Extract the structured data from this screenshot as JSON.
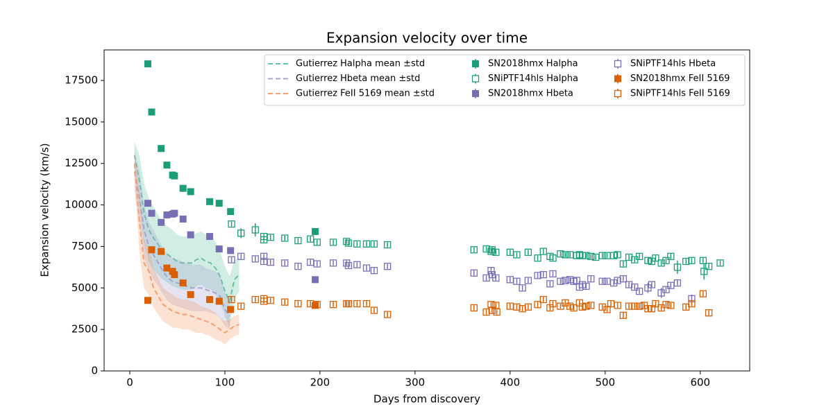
{
  "chart_data": {
    "type": "scatter",
    "title": "Expansion velocity over time",
    "x_label": "Days from discovery",
    "y_label": "Expansion velocity (km/s)",
    "xlim": [
      -27,
      652
    ],
    "ylim": [
      0,
      19340
    ],
    "xticks": [
      0,
      100,
      200,
      300,
      400,
      500,
      600
    ],
    "yticks": [
      0,
      2500,
      5000,
      7500,
      10000,
      12500,
      15000,
      17500
    ],
    "grid": false,
    "legend_loc": "upper right",
    "series": [
      {
        "name": "Gutierrez Halpha mean ±std",
        "style": "band-line",
        "color": "#66c2a5",
        "x": [
          5,
          10,
          15,
          20,
          25,
          30,
          35,
          40,
          45,
          50,
          55,
          60,
          65,
          70,
          75,
          80,
          85,
          90,
          95,
          100,
          105,
          110,
          115
        ],
        "values": [
          13000,
          11500,
          9500,
          8500,
          8000,
          7600,
          7200,
          7000,
          6800,
          6600,
          6500,
          6500,
          6500,
          6700,
          6800,
          6600,
          6500,
          6200,
          5700,
          4800,
          4200,
          5500,
          5800
        ],
        "std": [
          800,
          1500,
          1800,
          1900,
          1900,
          1800,
          1700,
          1700,
          1700,
          1600,
          1600,
          1600,
          1600,
          1600,
          1600,
          1600,
          1600,
          1600,
          1500,
          1500,
          1500,
          1200,
          1000
        ]
      },
      {
        "name": "Gutierrez Hbeta mean ±std",
        "style": "band-line",
        "color": "#a6a4d4",
        "x": [
          5,
          10,
          15,
          20,
          25,
          30,
          35,
          40,
          45,
          50,
          55,
          60,
          65,
          70,
          75,
          80,
          85,
          90,
          95,
          100,
          105
        ],
        "values": [
          12000,
          10500,
          8500,
          7500,
          7000,
          6500,
          6000,
          5600,
          5400,
          5300,
          5200,
          5100,
          5000,
          5000,
          5000,
          4900,
          4800,
          4700,
          4500,
          3700,
          3300
        ],
        "std": [
          1200,
          1600,
          1600,
          1500,
          1500,
          1400,
          1400,
          1400,
          1400,
          1400,
          1400,
          1400,
          1400,
          1400,
          1400,
          1300,
          1300,
          1300,
          1300,
          1000,
          800
        ]
      },
      {
        "name": "Gutierrez FeII 5169 mean ±std",
        "style": "band-line",
        "color": "#f4a06e",
        "x": [
          5,
          10,
          15,
          20,
          25,
          30,
          35,
          40,
          45,
          50,
          55,
          60,
          65,
          70,
          75,
          80,
          85,
          90,
          95,
          100,
          105,
          110,
          115
        ],
        "values": [
          12500,
          9000,
          6500,
          6000,
          5000,
          4500,
          4000,
          3800,
          3600,
          3500,
          3400,
          3400,
          3300,
          3200,
          3100,
          3000,
          2900,
          2700,
          2500,
          2300,
          2500,
          2700,
          2800
        ],
        "std": [
          800,
          1800,
          1500,
          1400,
          1200,
          1100,
          1000,
          1000,
          1000,
          900,
          900,
          900,
          900,
          900,
          800,
          800,
          800,
          800,
          700,
          700,
          600,
          600,
          600
        ]
      },
      {
        "name": "SN2018hmx Halpha",
        "style": "filled-square",
        "color": "#1b9e77",
        "x": [
          19,
          23,
          33,
          39,
          45,
          47,
          56,
          64,
          84,
          94,
          106,
          195
        ],
        "values": [
          18500,
          15600,
          13400,
          12400,
          11800,
          11750,
          11000,
          10800,
          10200,
          10100,
          9600,
          8400
        ]
      },
      {
        "name": "SNiPTF14hls Halpha",
        "style": "open-square",
        "color": "#1b9e77",
        "x": [
          107,
          117,
          132,
          141,
          141,
          148,
          163,
          177,
          190,
          197,
          214,
          228,
          230,
          239,
          249,
          257,
          271,
          362,
          375,
          380,
          381,
          385,
          400,
          407,
          419,
          429,
          435,
          442,
          445,
          453,
          458,
          463,
          470,
          473,
          476,
          480,
          485,
          490,
          497,
          502,
          509,
          513,
          519,
          525,
          531,
          536,
          545,
          549,
          553,
          559,
          564,
          569,
          576,
          585,
          591,
          603,
          604,
          609,
          621
        ],
        "values": [
          8850,
          8300,
          8500,
          8100,
          7900,
          8050,
          8000,
          7850,
          7950,
          7750,
          7750,
          7800,
          7700,
          7650,
          7650,
          7650,
          7600,
          7300,
          7350,
          7200,
          7300,
          7150,
          7150,
          7000,
          7150,
          6800,
          7200,
          6900,
          6800,
          7050,
          7000,
          7000,
          6950,
          7000,
          6950,
          6950,
          6900,
          6850,
          6950,
          6950,
          6950,
          7000,
          6450,
          6850,
          6700,
          6900,
          6650,
          6600,
          6800,
          6500,
          6650,
          6900,
          6250,
          6600,
          6650,
          6650,
          6000,
          6300,
          6500
        ],
        "errors": [
          150,
          300,
          400,
          150,
          150,
          150,
          150,
          150,
          150,
          150,
          150,
          150,
          150,
          150,
          150,
          150,
          150,
          150,
          150,
          150,
          150,
          150,
          150,
          150,
          150,
          150,
          150,
          150,
          150,
          150,
          150,
          150,
          150,
          150,
          150,
          150,
          150,
          150,
          150,
          150,
          150,
          150,
          150,
          150,
          150,
          150,
          150,
          150,
          150,
          150,
          150,
          150,
          400,
          150,
          150,
          150,
          500,
          150,
          150
        ]
      },
      {
        "name": "SN2018hmx Hbeta",
        "style": "filled-square",
        "color": "#7570b3",
        "x": [
          19,
          23,
          33,
          39,
          45,
          47,
          56,
          64,
          84,
          94,
          106,
          195
        ],
        "values": [
          10100,
          9500,
          8950,
          9400,
          9450,
          9500,
          9150,
          8200,
          8100,
          7350,
          7250,
          5500
        ]
      },
      {
        "name": "SNiPTF14hls Hbeta",
        "style": "open-square",
        "color": "#7570b3",
        "x": [
          107,
          117,
          132,
          141,
          141,
          148,
          163,
          177,
          190,
          197,
          214,
          228,
          230,
          239,
          249,
          257,
          271,
          362,
          375,
          380,
          381,
          385,
          400,
          407,
          413,
          419,
          429,
          435,
          442,
          445,
          453,
          458,
          463,
          467,
          470,
          473,
          476,
          480,
          485,
          497,
          502,
          509,
          513,
          519,
          525,
          531,
          536,
          545,
          549,
          559,
          564,
          569,
          576,
          591
        ],
        "values": [
          6700,
          6900,
          6750,
          6900,
          6600,
          6550,
          6500,
          6300,
          6550,
          6450,
          6500,
          6500,
          6350,
          6400,
          6200,
          6050,
          6300,
          5900,
          5600,
          6050,
          5800,
          5600,
          5500,
          5400,
          5000,
          5450,
          5750,
          5800,
          5250,
          5850,
          5400,
          5450,
          5500,
          5400,
          5450,
          5050,
          5200,
          5100,
          5550,
          5400,
          5400,
          5300,
          5450,
          5550,
          5200,
          5050,
          4800,
          5000,
          5200,
          4700,
          4900,
          5150,
          5300,
          4350
        ],
        "errors": [
          150,
          150,
          150,
          150,
          150,
          150,
          150,
          150,
          150,
          150,
          150,
          150,
          150,
          150,
          150,
          150,
          150,
          150,
          150,
          200,
          150,
          150,
          150,
          150,
          150,
          150,
          150,
          150,
          150,
          150,
          150,
          150,
          150,
          150,
          150,
          150,
          150,
          150,
          150,
          150,
          150,
          150,
          150,
          150,
          150,
          150,
          150,
          300,
          150,
          300,
          150,
          150,
          150,
          250
        ]
      },
      {
        "name": "SN2018hmx FeII 5169",
        "style": "filled-square",
        "color": "#d95f02",
        "x": [
          19,
          23,
          33,
          39,
          45,
          47,
          56,
          64,
          84,
          94,
          106,
          195
        ],
        "values": [
          4250,
          7300,
          7200,
          6200,
          6000,
          5800,
          5300,
          4600,
          4300,
          4200,
          3700,
          3950
        ]
      },
      {
        "name": "SNiPTF14hls FeII 5169",
        "style": "open-square",
        "color": "#d95f02",
        "x": [
          107,
          117,
          132,
          141,
          141,
          148,
          163,
          177,
          190,
          197,
          214,
          228,
          230,
          239,
          249,
          257,
          271,
          362,
          375,
          380,
          381,
          385,
          386,
          400,
          407,
          413,
          419,
          429,
          435,
          442,
          445,
          453,
          458,
          463,
          467,
          473,
          476,
          480,
          485,
          497,
          502,
          506,
          513,
          519,
          525,
          531,
          536,
          541,
          545,
          549,
          553,
          559,
          564,
          569,
          585,
          591,
          603,
          609
        ],
        "values": [
          4300,
          3900,
          4300,
          4350,
          4200,
          4250,
          4150,
          4050,
          4050,
          4000,
          4000,
          4050,
          4050,
          4050,
          4050,
          3650,
          3400,
          3800,
          3550,
          4000,
          3650,
          3950,
          3550,
          3900,
          3850,
          3750,
          3850,
          4000,
          4300,
          3800,
          4050,
          3900,
          4100,
          3900,
          3800,
          4100,
          3850,
          3900,
          3950,
          3850,
          3700,
          4050,
          3950,
          3350,
          3900,
          3900,
          3900,
          3950,
          3750,
          3750,
          4050,
          3800,
          4000,
          3950,
          3850,
          4050,
          4650,
          3500
        ],
        "errors": [
          150,
          150,
          150,
          150,
          150,
          150,
          150,
          150,
          150,
          150,
          150,
          150,
          150,
          150,
          150,
          150,
          150,
          150,
          150,
          150,
          150,
          150,
          150,
          150,
          150,
          150,
          150,
          150,
          150,
          150,
          150,
          150,
          150,
          150,
          150,
          150,
          150,
          150,
          150,
          150,
          150,
          150,
          150,
          200,
          150,
          150,
          150,
          150,
          150,
          150,
          150,
          150,
          150,
          150,
          150,
          150,
          150,
          150
        ]
      }
    ]
  }
}
